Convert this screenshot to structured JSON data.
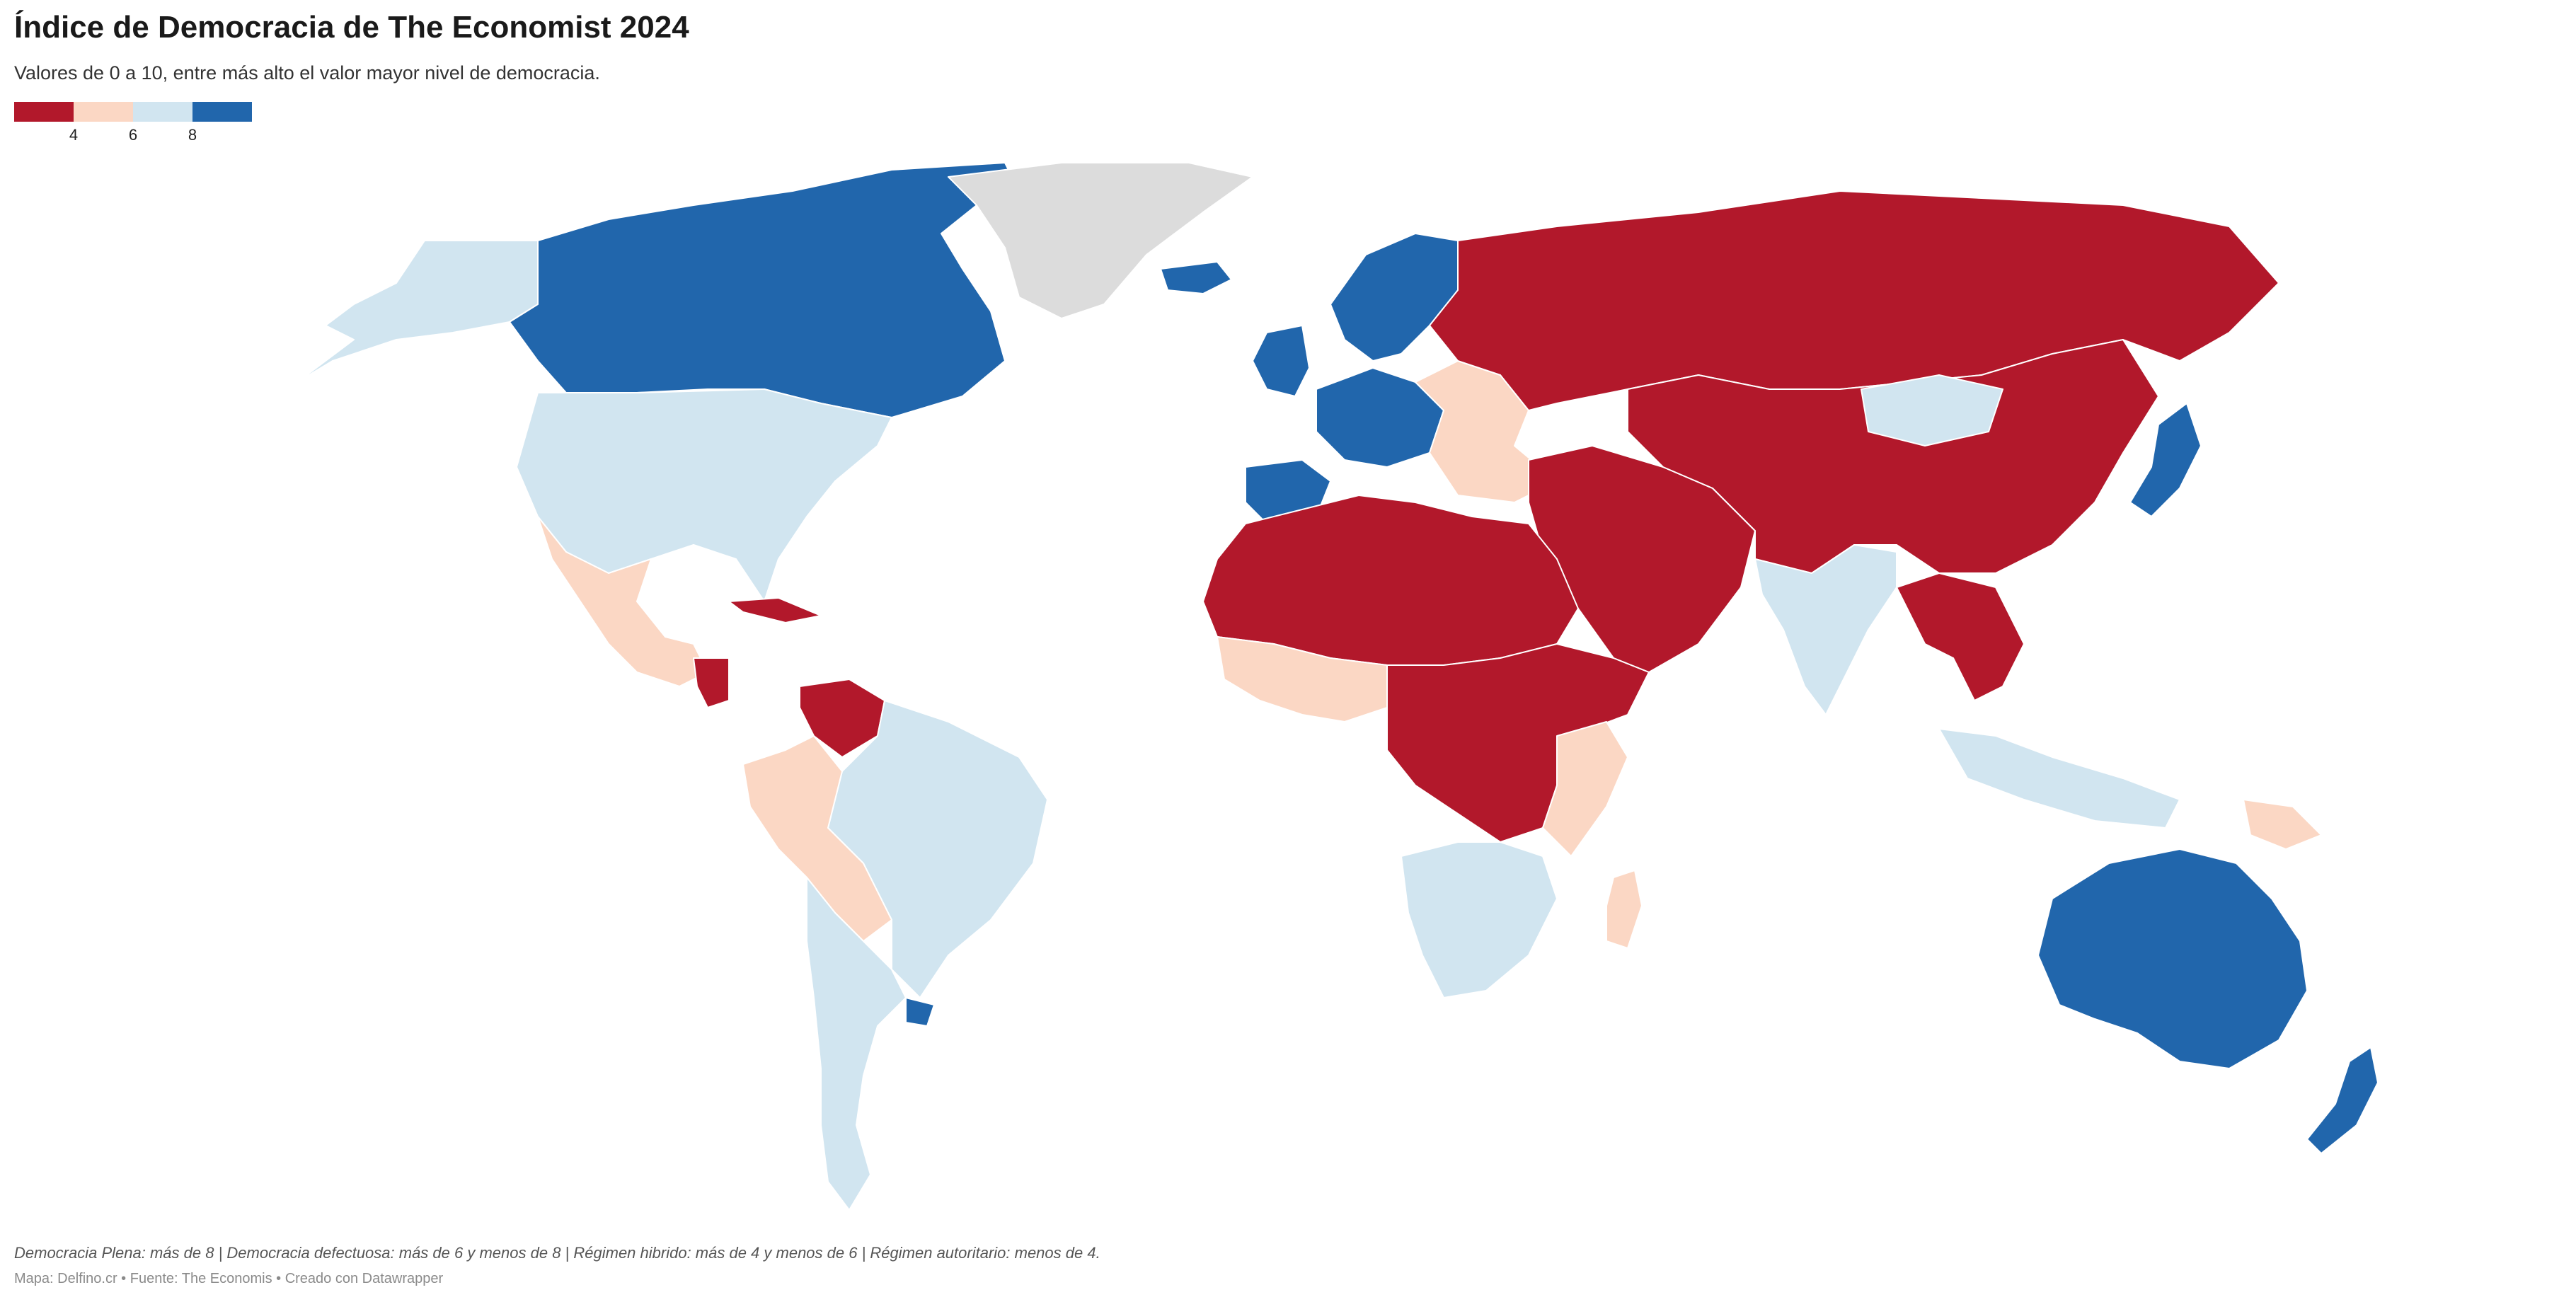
{
  "header": {
    "title": "Índice de Democracia de The Economist 2024",
    "subtitle": "Valores de 0 a 10, entre más alto el valor mayor nivel de democracia."
  },
  "legend": {
    "colors": [
      "#b2182b",
      "#fbd7c4",
      "#d1e5f0",
      "#2166ac"
    ],
    "thresholds": [
      "4",
      "6",
      "8"
    ]
  },
  "colors": {
    "authoritarian": "#b2182b",
    "hybrid": "#fbd7c4",
    "flawed": "#d1e5f0",
    "full": "#2166ac",
    "no_data": "#dcdcdc"
  },
  "regions": [
    {
      "name": "alaska",
      "category": "flawed"
    },
    {
      "name": "canada",
      "category": "full"
    },
    {
      "name": "greenland",
      "category": "no_data"
    },
    {
      "name": "iceland",
      "category": "full"
    },
    {
      "name": "usa",
      "category": "flawed"
    },
    {
      "name": "mexico",
      "category": "hybrid"
    },
    {
      "name": "cuba",
      "category": "authoritarian"
    },
    {
      "name": "nicaragua",
      "category": "authoritarian"
    },
    {
      "name": "venezuela",
      "category": "authoritarian"
    },
    {
      "name": "brazil",
      "category": "flawed"
    },
    {
      "name": "peru-bolivia",
      "category": "hybrid"
    },
    {
      "name": "southern-cone",
      "category": "flawed"
    },
    {
      "name": "uruguay",
      "category": "full"
    },
    {
      "name": "uk-ireland",
      "category": "full"
    },
    {
      "name": "scandinavia",
      "category": "full"
    },
    {
      "name": "western-europe",
      "category": "full"
    },
    {
      "name": "iberia",
      "category": "full"
    },
    {
      "name": "eastern-europe",
      "category": "hybrid"
    },
    {
      "name": "russia",
      "category": "authoritarian"
    },
    {
      "name": "north-africa",
      "category": "authoritarian"
    },
    {
      "name": "west-africa",
      "category": "hybrid"
    },
    {
      "name": "central-africa",
      "category": "authoritarian"
    },
    {
      "name": "east-africa",
      "category": "hybrid"
    },
    {
      "name": "southern-africa",
      "category": "flawed"
    },
    {
      "name": "madagascar",
      "category": "hybrid"
    },
    {
      "name": "middle-east",
      "category": "authoritarian"
    },
    {
      "name": "china-central-asia",
      "category": "authoritarian"
    },
    {
      "name": "mongolia",
      "category": "flawed"
    },
    {
      "name": "india",
      "category": "flawed"
    },
    {
      "name": "japan",
      "category": "full"
    },
    {
      "name": "indochina",
      "category": "authoritarian"
    },
    {
      "name": "southeast-asia",
      "category": "flawed"
    },
    {
      "name": "papua-new-guinea",
      "category": "hybrid"
    },
    {
      "name": "australia",
      "category": "full"
    },
    {
      "name": "new-zealand",
      "category": "full"
    }
  ],
  "footer": {
    "notes": "Democracia Plena: más de 8 | Democracia defectuosa: más de 6 y menos de 8 | Régimen hibrido: más de 4 y menos de 6 | Régimen autoritario: menos de 4.",
    "credit": "Mapa: Delfino.cr • Fuente: The Economis • Creado con Datawrapper"
  }
}
